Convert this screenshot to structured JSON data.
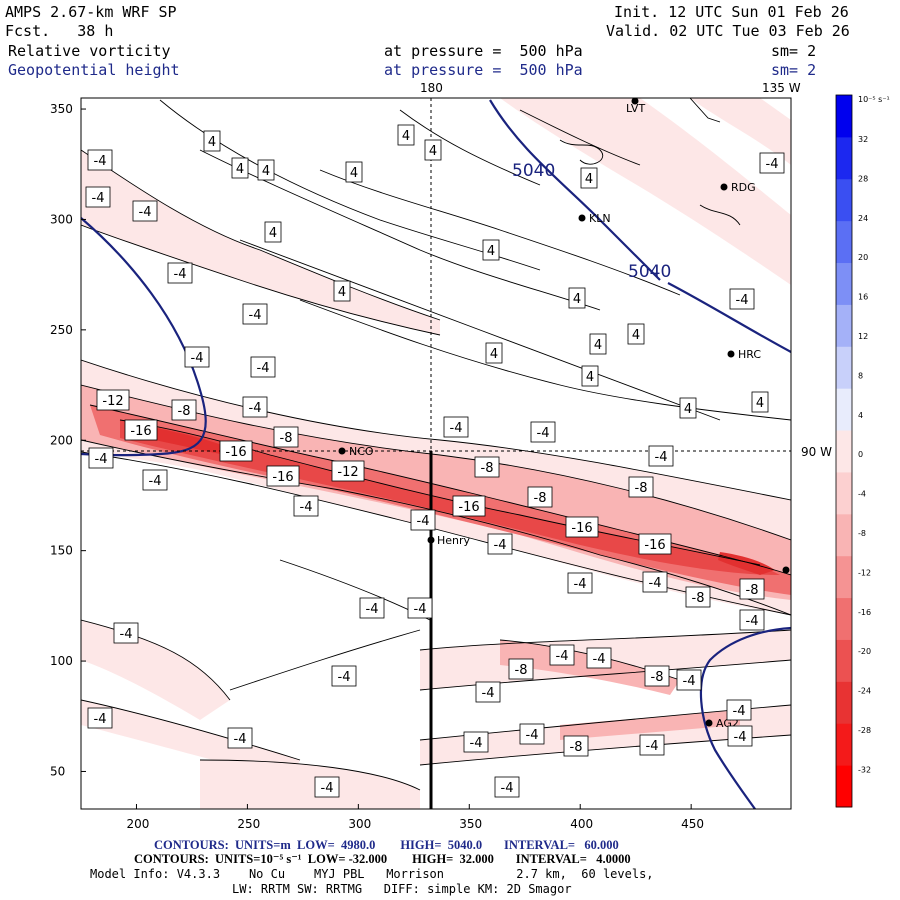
{
  "header": {
    "model": "AMPS 2.67-km WRF SP",
    "forecast": "Fcst.   38 h",
    "init": "Init. 12 UTC Sun 01 Feb 26",
    "valid": "Valid. 02 UTC Tue 03 Feb 26",
    "field1": "Relative vorticity",
    "field2": "Geopotential height",
    "pressure1": "at pressure =  500 hPa",
    "pressure2": "at pressure =  500 hPa",
    "sm1": "sm= 2",
    "sm2": "sm= 2"
  },
  "map": {
    "lon_top_180": "180",
    "lon_top_135w": "135 W",
    "lon_right_90w": "90 W",
    "x_ticks": [
      "200",
      "250",
      "300",
      "350",
      "400",
      "450"
    ],
    "y_ticks": [
      "350",
      "300",
      "250",
      "200",
      "150",
      "100",
      "50"
    ],
    "height_labels": [
      "5040",
      "5040"
    ],
    "vort_labels": [
      "-4",
      "-4",
      "-4",
      "-4",
      "-4",
      "-4",
      "-4",
      "-4",
      "-4",
      "-4",
      "-4",
      "-4",
      "-4",
      "-4",
      "-4",
      "-4",
      "-4",
      "-4",
      "-4",
      "-4",
      "-4",
      "-4",
      "-4",
      "-4",
      "-4",
      "-4",
      "-4",
      "-4",
      "-4",
      "-4",
      "-4",
      "-4",
      "-4",
      "-4",
      "-4",
      "-4",
      "-4",
      "-4",
      "-8",
      "-8",
      "-8",
      "-8",
      "-8",
      "-8",
      "-8",
      "-8",
      "-8",
      "-8",
      "-12",
      "-12",
      "-16",
      "-16",
      "-16",
      "-16",
      "-16",
      "-16",
      "4",
      "4",
      "4",
      "4",
      "4",
      "4",
      "4",
      "4",
      "4",
      "4",
      "4",
      "4",
      "4",
      "4",
      "4",
      "4",
      "4"
    ],
    "stations": [
      "LVT",
      "RDG",
      "KLN",
      "HRC",
      "NCO",
      "Henry",
      "AG2"
    ]
  },
  "colorbar": {
    "unit": "10⁻⁵ s⁻¹",
    "labels": [
      "32",
      "28",
      "24",
      "20",
      "16",
      "12",
      "8",
      "4",
      "0",
      "-4",
      "-8",
      "-12",
      "-16",
      "-20",
      "-24",
      "-28",
      "-32"
    ],
    "colors": [
      "#0000ee",
      "#1c28f0",
      "#3a4ff2",
      "#5b6ff4",
      "#7d8ff6",
      "#a4b1f8",
      "#c8d0fa",
      "#e8ecfc",
      "#fde7e7",
      "#fcd0d0",
      "#f9b4b4",
      "#f59393",
      "#f07070",
      "#ec5151",
      "#e83333",
      "#f41a1a",
      "#ff0000"
    ]
  },
  "footer": {
    "line1": "CONTOURS:  UNITS=m  LOW=  4980.0        HIGH=  5040.0       INTERVAL=   60.000",
    "line2": "CONTOURS:  UNITS=10⁻⁵ s⁻¹  LOW= -32.000        HIGH=  32.000       INTERVAL=   4.0000",
    "line3": "Model Info: V4.3.3    No Cu    MYJ PBL   Morrison          2.7 km,  60 levels,",
    "line4": "LW: RRTM SW: RRTMG   DIFF: simple KM: 2D Smagor"
  }
}
